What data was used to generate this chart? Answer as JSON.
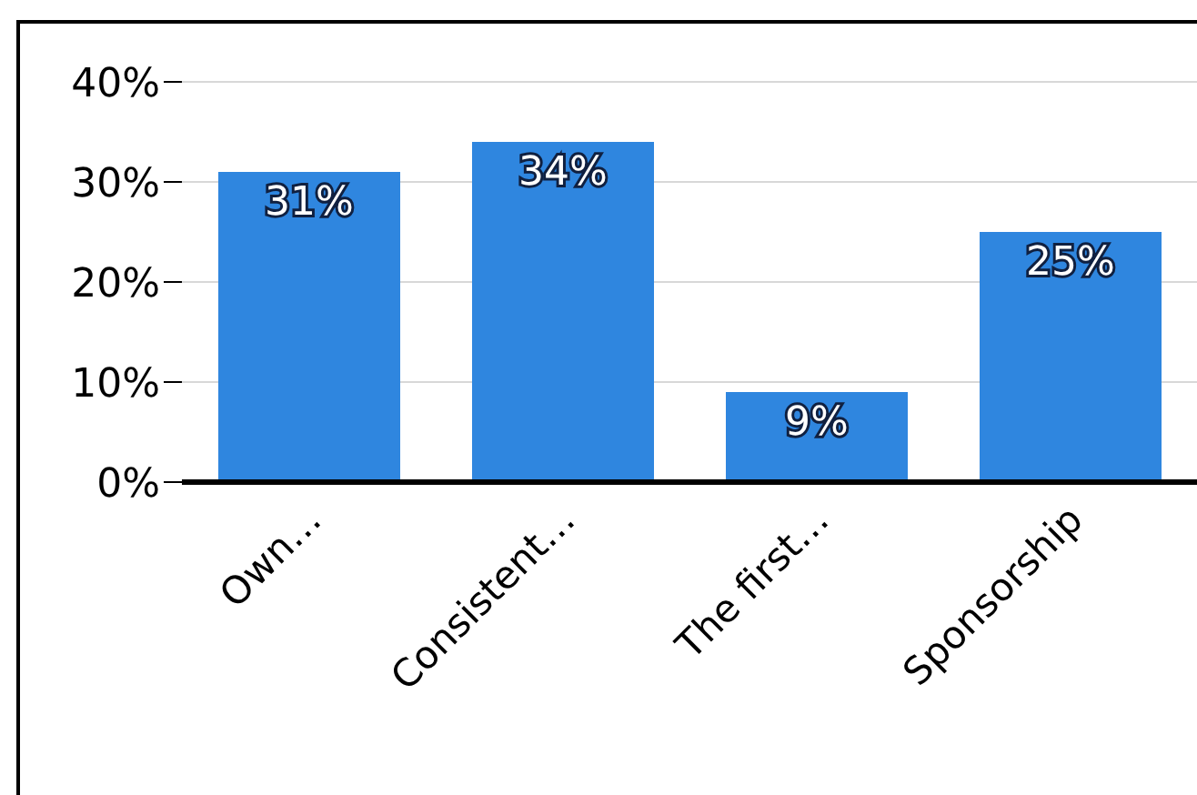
{
  "chart_data": {
    "type": "bar",
    "categories": [
      "Own…",
      "Consistent…",
      "The first…",
      "Sponsorship"
    ],
    "values": [
      31,
      34,
      9,
      25
    ],
    "color": "#2f86df",
    "value_labels": [
      "31%",
      "34%",
      "9%",
      "25%"
    ],
    "ylim": [
      0,
      40
    ],
    "yticks": [
      {
        "value": 0,
        "label": "0%"
      },
      {
        "value": 10,
        "label": "10%"
      },
      {
        "value": 20,
        "label": "20%"
      },
      {
        "value": 30,
        "label": "30%"
      },
      {
        "value": 40,
        "label": "40%"
      }
    ],
    "grid": "y"
  }
}
